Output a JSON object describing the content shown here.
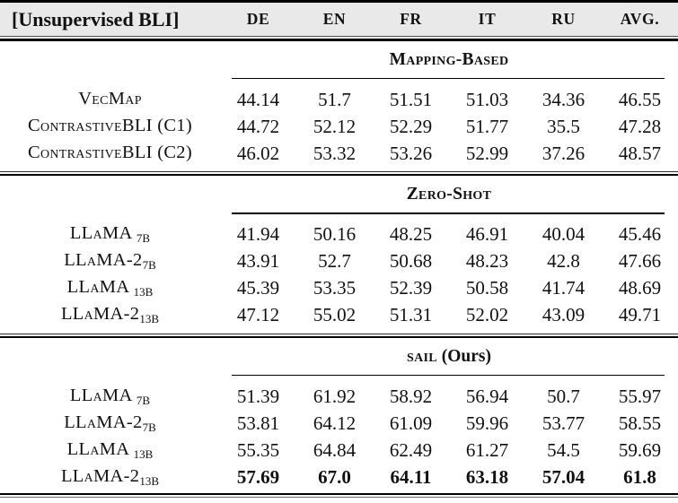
{
  "table": {
    "corner_label": "[Unsupervised BLI]",
    "columns": [
      "DE",
      "EN",
      "FR",
      "IT",
      "RU",
      "AVG."
    ],
    "colors": {
      "header_bg": "#e9e9e9",
      "text": "#111111",
      "rule": "#000000"
    },
    "sections": [
      {
        "title_sc": "Mapping-Based",
        "title_plain": "",
        "rows": [
          {
            "label": "VecMap",
            "label_sub": "",
            "cells": [
              "44.14",
              "51.7",
              "51.51",
              "51.03",
              "34.36",
              "46.55"
            ]
          },
          {
            "label": "ContrastiveBLI (C1)",
            "label_sub": "",
            "cells": [
              "44.72",
              "52.12",
              "52.29",
              "51.77",
              "35.5",
              "47.28"
            ]
          },
          {
            "label": "ContrastiveBLI (C2)",
            "label_sub": "",
            "cells": [
              "46.02",
              "53.32",
              "53.26",
              "52.99",
              "37.26",
              "48.57"
            ]
          }
        ]
      },
      {
        "title_sc": "Zero-Shot",
        "title_plain": "",
        "rows": [
          {
            "label": "LLaMA ",
            "label_sub": "7B",
            "cells": [
              "41.94",
              "50.16",
              "48.25",
              "46.91",
              "40.04",
              "45.46"
            ]
          },
          {
            "label": "LLaMA-2",
            "label_sub": "7B",
            "cells": [
              "43.91",
              "52.7",
              "50.68",
              "48.23",
              "42.8",
              "47.66"
            ]
          },
          {
            "label": "LLaMA ",
            "label_sub": "13B",
            "cells": [
              "45.39",
              "53.35",
              "52.39",
              "50.58",
              "41.74",
              "48.69"
            ]
          },
          {
            "label": "LLaMA-2",
            "label_sub": "13B",
            "cells": [
              "47.12",
              "55.02",
              "51.31",
              "52.02",
              "43.09",
              "49.71"
            ]
          }
        ]
      },
      {
        "title_sc": "sail",
        "title_plain": " (Ours)",
        "rows": [
          {
            "label": "LLaMA ",
            "label_sub": "7B",
            "cells": [
              "51.39",
              "61.92",
              "58.92",
              "56.94",
              "50.7",
              "55.97"
            ]
          },
          {
            "label": "LLaMA-2",
            "label_sub": "7B",
            "cells": [
              "53.81",
              "64.12",
              "61.09",
              "59.96",
              "53.77",
              "58.55"
            ]
          },
          {
            "label": "LLaMA ",
            "label_sub": "13B",
            "cells": [
              "55.35",
              "64.84",
              "62.49",
              "61.27",
              "54.5",
              "59.69"
            ]
          },
          {
            "label": "LLaMA-2",
            "label_sub": "13B",
            "cells": [
              "57.69",
              "67.0",
              "64.11",
              "63.18",
              "57.04",
              "61.8"
            ]
          }
        ]
      }
    ]
  }
}
